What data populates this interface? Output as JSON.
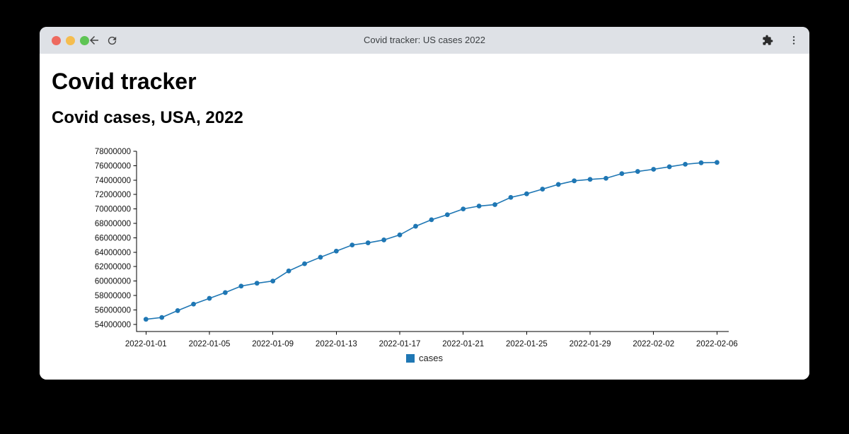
{
  "browser": {
    "title": "Covid tracker: US cases 2022",
    "icons": {
      "traffic_lights": [
        "close",
        "minimize",
        "maximize"
      ],
      "toolbar_left": [
        "back-arrow",
        "reload"
      ],
      "toolbar_right": [
        "extensions-puzzle",
        "overflow-menu-dots"
      ]
    },
    "colors": {
      "titlebar_bg": "#dee1e6",
      "titlebar_text": "#3c4043",
      "traffic_red": "#ee6a5f",
      "traffic_yellow": "#f5bd4f",
      "traffic_green": "#5ec454",
      "icon_gray": "#3c4043"
    }
  },
  "page": {
    "title": "Covid tracker",
    "subtitle": "Covid cases, USA, 2022"
  },
  "chart_data": {
    "type": "line",
    "title": "",
    "xlabel": "",
    "ylabel": "",
    "grid": false,
    "legend_position": "bottom",
    "accent_color": "#1f77b4",
    "x": [
      "2022-01-01",
      "2022-01-02",
      "2022-01-03",
      "2022-01-04",
      "2022-01-05",
      "2022-01-06",
      "2022-01-07",
      "2022-01-08",
      "2022-01-09",
      "2022-01-10",
      "2022-01-11",
      "2022-01-12",
      "2022-01-13",
      "2022-01-14",
      "2022-01-15",
      "2022-01-16",
      "2022-01-17",
      "2022-01-18",
      "2022-01-19",
      "2022-01-20",
      "2022-01-21",
      "2022-01-22",
      "2022-01-23",
      "2022-01-24",
      "2022-01-25",
      "2022-01-26",
      "2022-01-27",
      "2022-01-28",
      "2022-01-29",
      "2022-01-30",
      "2022-01-31",
      "2022-02-01",
      "2022-02-02",
      "2022-02-03",
      "2022-02-04",
      "2022-02-05",
      "2022-02-06"
    ],
    "series": [
      {
        "name": "cases",
        "color": "#1f77b4",
        "values": [
          54700000,
          54950000,
          55900000,
          56800000,
          57600000,
          58400000,
          59300000,
          59700000,
          60000000,
          61400000,
          62400000,
          63300000,
          64150000,
          65000000,
          65300000,
          65700000,
          66400000,
          67600000,
          68500000,
          69200000,
          70000000,
          70400000,
          70600000,
          71600000,
          72100000,
          72750000,
          73400000,
          73900000,
          74100000,
          74250000,
          74900000,
          75200000,
          75500000,
          75850000,
          76200000,
          76400000,
          76450000
        ]
      }
    ],
    "yticks": [
      54000000,
      56000000,
      58000000,
      60000000,
      62000000,
      64000000,
      66000000,
      68000000,
      70000000,
      72000000,
      74000000,
      76000000,
      78000000
    ],
    "xtick_every": 4,
    "ylim": [
      53000000,
      78000000
    ]
  }
}
